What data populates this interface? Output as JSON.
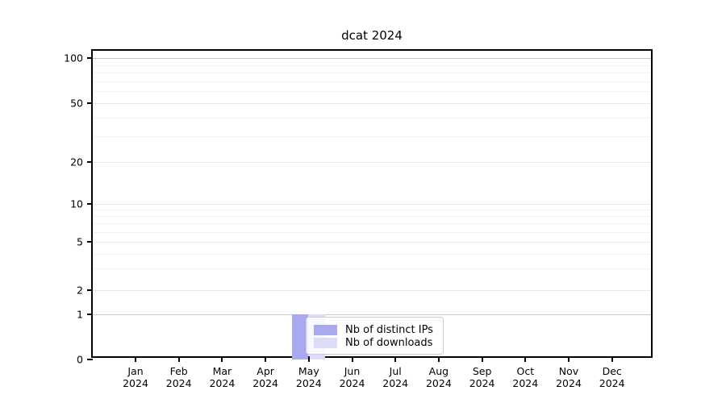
{
  "figure": {
    "background_color": "#ffffff"
  },
  "chart_data": {
    "type": "bar",
    "title": "dcat 2024",
    "xlabel": "",
    "ylabel": "",
    "categories": [
      "Jan 2024",
      "Feb 2024",
      "Mar 2024",
      "Apr 2024",
      "May 2024",
      "Jun 2024",
      "Jul 2024",
      "Aug 2024",
      "Sep 2024",
      "Oct 2024",
      "Nov 2024",
      "Dec 2024"
    ],
    "x_tick_labels": {
      "months": [
        "Jan",
        "Feb",
        "Mar",
        "Apr",
        "May",
        "Jun",
        "Jul",
        "Aug",
        "Sep",
        "Oct",
        "Nov",
        "Dec"
      ],
      "year": "2024"
    },
    "series": [
      {
        "name": "Nb of distinct IPs",
        "color": "#a9a9ef",
        "values": [
          0,
          0,
          0,
          0,
          1,
          0,
          0,
          0,
          0,
          0,
          0,
          0
        ]
      },
      {
        "name": "Nb of downloads",
        "color": "#dcdcf9",
        "values": [
          0,
          0,
          0,
          0,
          1,
          0,
          0,
          0,
          0,
          0,
          0,
          0
        ]
      }
    ],
    "yscale": "log-like",
    "ylim": [
      0,
      115
    ],
    "yticks": [
      0,
      1,
      2,
      5,
      10,
      20,
      50,
      100
    ],
    "minor_gridline_values": [
      3,
      4,
      6,
      7,
      8,
      9,
      30,
      40,
      60,
      70,
      80,
      90
    ],
    "emphasized_gridline_values": [
      1,
      100
    ],
    "grid": "horizontal major + minor, light gray",
    "legend": {
      "position": "inside-bottom-center, overlapping May bars",
      "items": [
        {
          "label": "Nb of distinct IPs",
          "color": "#a9a9ef"
        },
        {
          "label": "Nb of downloads",
          "color": "#dcdcf9"
        }
      ]
    }
  },
  "colors": {
    "bar_distinct_ips": "#a9a9ef",
    "bar_downloads": "#dcdcf9",
    "axis_spine": "#000000",
    "gridline_emphasized": "#c8c8c8",
    "gridline_major": "#e7e7e7",
    "gridline_minor": "#f2f2f2",
    "legend_border": "#cccccc",
    "text": "#000000"
  }
}
